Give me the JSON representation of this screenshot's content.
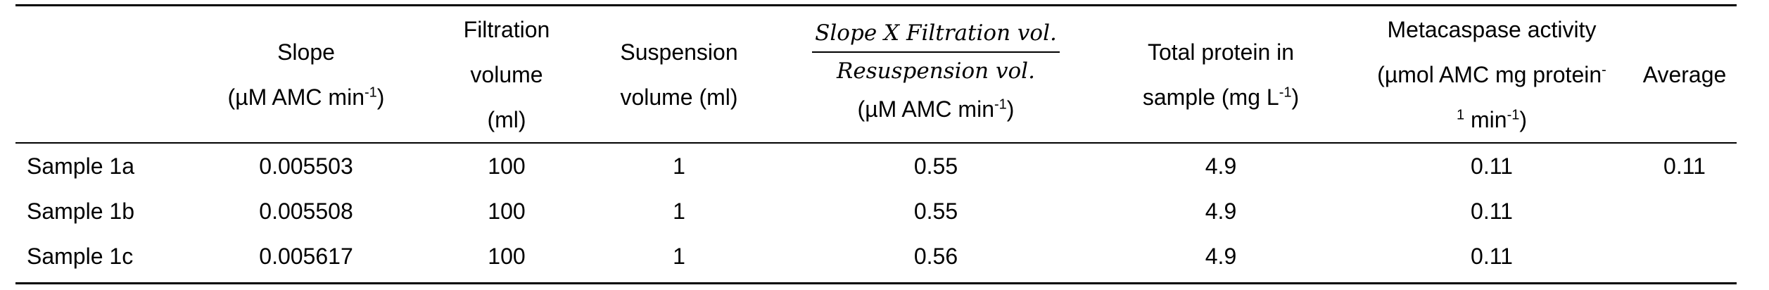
{
  "header": {
    "slope": {
      "line1": "Slope",
      "line2_pre": "(µM AMC min",
      "line2_sup": "-1",
      "line2_post": ")"
    },
    "filtration": {
      "line1": "Filtration",
      "line2": "volume",
      "line3": "(ml)"
    },
    "suspension": {
      "line1": "Suspension",
      "line2": "volume (ml)"
    },
    "ratio": {
      "numerator": "Slope X Filtration vol.",
      "denominator": "Resuspension vol.",
      "unit_pre": "(µM AMC min",
      "unit_sup": "-1",
      "unit_post": ")"
    },
    "protein": {
      "line1": "Total protein in",
      "line2_pre": "sample (mg L",
      "line2_sup": "-1",
      "line2_post": ")"
    },
    "metacaspase": {
      "line1": "Metacaspase activity",
      "line2_pre": "(µmol AMC mg protein",
      "line2_sup": "-",
      "line3_sup": "1",
      "line3_mid": " min",
      "line3_sup2": "-1",
      "line3_post": ")"
    },
    "average": {
      "line1": "Average"
    }
  },
  "rows": [
    {
      "label": "Sample 1a",
      "slope": "0.005503",
      "filtration": "100",
      "suspension": "1",
      "ratio": "0.55",
      "protein": "4.9",
      "activity": "0.11",
      "average": "0.11"
    },
    {
      "label": "Sample 1b",
      "slope": "0.005508",
      "filtration": "100",
      "suspension": "1",
      "ratio": "0.55",
      "protein": "4.9",
      "activity": "0.11",
      "average": ""
    },
    {
      "label": "Sample 1c",
      "slope": "0.005617",
      "filtration": "100",
      "suspension": "1",
      "ratio": "0.56",
      "protein": "4.9",
      "activity": "0.11",
      "average": ""
    }
  ]
}
